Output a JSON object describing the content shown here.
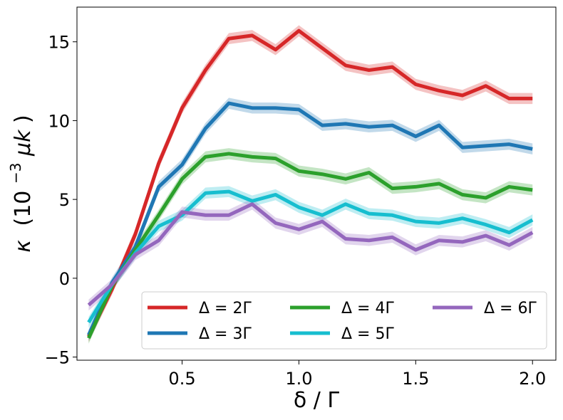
{
  "chart_data": {
    "type": "line",
    "title": "",
    "xlabel": "δ / Γ",
    "ylabel_parts": {
      "symbol": "κ",
      "unit_prefix": "(10",
      "exponent": "−3",
      "unit": "μk",
      "close": ")"
    },
    "xlim": [
      0.05,
      2.1
    ],
    "ylim": [
      -5.2,
      17.2
    ],
    "x_ticks": [
      0.5,
      1.0,
      1.5,
      2.0
    ],
    "x_tick_labels": [
      "0.5",
      "1.0",
      "1.5",
      "2.0"
    ],
    "y_ticks": [
      -5,
      0,
      5,
      10,
      15
    ],
    "y_tick_labels": [
      "−5",
      "0",
      "5",
      "10",
      "15"
    ],
    "grid": false,
    "legend_position": "lower-right",
    "x": [
      0.1,
      0.2,
      0.3,
      0.4,
      0.5,
      0.6,
      0.7,
      0.8,
      0.9,
      1.0,
      1.1,
      1.2,
      1.3,
      1.4,
      1.5,
      1.6,
      1.7,
      1.8,
      1.9,
      2.0
    ],
    "series": [
      {
        "name": "Δ = 2Γ",
        "color": "#d62728",
        "band": 0.35,
        "values": [
          -3.7,
          -0.7,
          2.8,
          7.3,
          10.8,
          13.2,
          15.2,
          15.4,
          14.5,
          15.7,
          14.6,
          13.5,
          13.2,
          13.4,
          12.3,
          11.9,
          11.6,
          12.2,
          11.4,
          11.4
        ]
      },
      {
        "name": "Δ = 3Γ",
        "color": "#1f77b4",
        "band": 0.35,
        "values": [
          -3.6,
          -0.3,
          2.0,
          5.8,
          7.2,
          9.5,
          11.1,
          10.8,
          10.8,
          10.7,
          9.7,
          9.8,
          9.6,
          9.7,
          9.0,
          9.7,
          8.3,
          8.4,
          8.5,
          8.2
        ]
      },
      {
        "name": "Δ = 4Γ",
        "color": "#2ca02c",
        "band": 0.35,
        "values": [
          -3.8,
          -0.5,
          1.8,
          4.0,
          6.3,
          7.7,
          7.9,
          7.7,
          7.6,
          6.8,
          6.6,
          6.3,
          6.7,
          5.7,
          5.8,
          6.0,
          5.3,
          5.1,
          5.8,
          5.6
        ]
      },
      {
        "name": "Δ = 5Γ",
        "color": "#17becf",
        "band": 0.35,
        "values": [
          -2.8,
          -0.4,
          1.6,
          3.3,
          4.0,
          5.4,
          5.5,
          4.9,
          5.3,
          4.5,
          4.0,
          4.7,
          4.1,
          4.0,
          3.6,
          3.5,
          3.8,
          3.4,
          2.9,
          3.7
        ]
      },
      {
        "name": "Δ = 6Γ",
        "color": "#9467bd",
        "band": 0.35,
        "values": [
          -1.7,
          -0.4,
          1.5,
          2.4,
          4.2,
          4.0,
          4.0,
          4.7,
          3.5,
          3.1,
          3.6,
          2.5,
          2.4,
          2.6,
          1.8,
          2.4,
          2.3,
          2.7,
          2.1,
          2.9
        ]
      }
    ]
  }
}
